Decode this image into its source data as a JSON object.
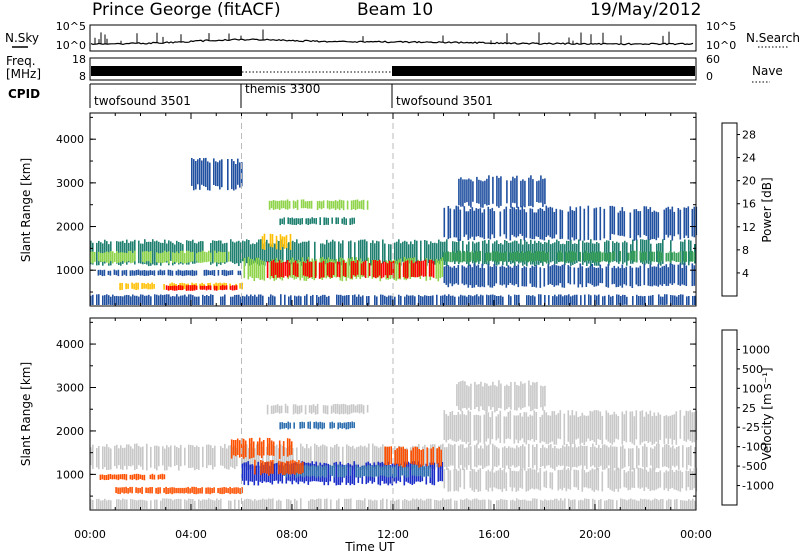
{
  "header": {
    "title": "Prince George (fitACF)",
    "beam": "Beam 10",
    "date": "19/May/2012"
  },
  "side_labels": {
    "nsky": "N.Sky",
    "freq_line1": "Freq.",
    "freq_line2": "[MHz]",
    "cpid": "CPID",
    "nsearch": "N.Search",
    "nave": "Nave"
  },
  "strip_axes": {
    "nsky_left_ticks": [
      "10^5",
      "10^0"
    ],
    "nsearch_right_ticks": [
      "10^5",
      "10^0"
    ],
    "freq_left_ticks": [
      "18",
      "8"
    ],
    "nave_right_ticks": [
      "60",
      "0"
    ]
  },
  "cpid_segments": [
    {
      "label": "twofsound 3501",
      "start_hour": 0,
      "end_hour": 6
    },
    {
      "label": "themis 3300",
      "start_hour": 6,
      "end_hour": 12
    },
    {
      "label": "twofsound 3501",
      "start_hour": 12,
      "end_hour": 24
    }
  ],
  "colors": {
    "power_scale": [
      "#ff0000",
      "#ff4400",
      "#ff8000",
      "#ffbf00",
      "#8fd44a",
      "#3aa05a",
      "#208070",
      "#2050a0",
      "#0000ff"
    ],
    "velocity_scale": [
      "#1a2cc8",
      "#2e6fb0",
      "#4f9a3a",
      "#5cc43c",
      "#c8c8c8",
      "#c8c8c8",
      "#ff8c00",
      "#ff5000",
      "#ff0000"
    ]
  },
  "chart_data": [
    {
      "type": "heatmap",
      "name": "power",
      "ylabel": "Slant Range [km]",
      "ylim": [
        180,
        4600
      ],
      "yticks": [
        "1000",
        "2000",
        "3000",
        "4000"
      ],
      "xlim": [
        0,
        24
      ],
      "xticks": [
        "00:00",
        "04:00",
        "08:00",
        "12:00",
        "16:00",
        "20:00",
        "00:00"
      ],
      "colorbar_label": "Power [dB]",
      "colorbar_ticks": [
        "4",
        "8",
        "12",
        "16",
        "20",
        "24",
        "28"
      ],
      "colorbar_range": [
        0,
        30
      ],
      "mode_change_hours": [
        6,
        12
      ],
      "regions": [
        {
          "t0": 0.0,
          "t1": 24.0,
          "r0": 1150,
          "r1": 1650,
          "value": 7
        },
        {
          "t0": 0.0,
          "t1": 5.5,
          "r0": 1180,
          "r1": 1420,
          "value": 14
        },
        {
          "t0": 14.0,
          "t1": 24.0,
          "r0": 1200,
          "r1": 1420,
          "value": 12
        },
        {
          "t0": 0.3,
          "t1": 6.0,
          "r0": 880,
          "r1": 1000,
          "value": 6
        },
        {
          "t0": 1.0,
          "t1": 6.0,
          "r0": 560,
          "r1": 700,
          "value": 18
        },
        {
          "t0": 3.0,
          "t1": 5.8,
          "r0": 540,
          "r1": 650,
          "value": 27
        },
        {
          "t0": 6.0,
          "t1": 14.0,
          "r0": 800,
          "r1": 1250,
          "value": 15
        },
        {
          "t0": 7.0,
          "t1": 13.6,
          "r0": 850,
          "r1": 1200,
          "value": 28
        },
        {
          "t0": 6.8,
          "t1": 8.0,
          "r0": 1500,
          "r1": 1800,
          "value": 20
        },
        {
          "t0": 7.0,
          "t1": 11.0,
          "r0": 2400,
          "r1": 2600,
          "value": 14
        },
        {
          "t0": 7.5,
          "t1": 10.5,
          "r0": 2050,
          "r1": 2200,
          "value": 10
        },
        {
          "t0": 14.0,
          "t1": 24.0,
          "r0": 650,
          "r1": 1100,
          "value": 5
        },
        {
          "t0": 14.0,
          "t1": 24.0,
          "r0": 1750,
          "r1": 2400,
          "value": 5
        },
        {
          "t0": 0.0,
          "t1": 24.0,
          "r0": 180,
          "r1": 420,
          "value": 4
        },
        {
          "t0": 14.5,
          "t1": 18.0,
          "r0": 2500,
          "r1": 3100,
          "value": 4
        },
        {
          "t0": 4.0,
          "t1": 6.0,
          "r0": 2900,
          "r1": 3500,
          "value": 4
        }
      ]
    },
    {
      "type": "heatmap",
      "name": "velocity",
      "ylabel": "Slant Range [km]",
      "ylim": [
        180,
        4600
      ],
      "yticks": [
        "1000",
        "2000",
        "3000",
        "4000"
      ],
      "xlim": [
        0,
        24
      ],
      "xticks": [
        "00:00",
        "04:00",
        "08:00",
        "12:00",
        "16:00",
        "20:00",
        "00:00"
      ],
      "xlabel": "Time UT",
      "colorbar_label": "Velocity [m s⁻¹]",
      "colorbar_ticks": [
        "1000",
        "500",
        "100",
        "25",
        "-25",
        "-100",
        "-500",
        "-1000"
      ],
      "colorbar_range": [
        -1000,
        1000
      ],
      "mode_change_hours": [
        6,
        12
      ],
      "regions": [
        {
          "t0": 0.0,
          "t1": 24.0,
          "r0": 1150,
          "r1": 1650,
          "value": 0
        },
        {
          "t0": 14.0,
          "t1": 24.0,
          "r0": 1750,
          "r1": 2400,
          "value": 0
        },
        {
          "t0": 14.0,
          "t1": 24.0,
          "r0": 650,
          "r1": 1100,
          "value": 0
        },
        {
          "t0": 1.0,
          "t1": 6.0,
          "r0": 560,
          "r1": 700,
          "value": -150
        },
        {
          "t0": 0.3,
          "t1": 3.0,
          "r0": 880,
          "r1": 1000,
          "value": -150
        },
        {
          "t0": 5.5,
          "t1": 8.0,
          "r0": 1400,
          "r1": 1800,
          "value": -150
        },
        {
          "t0": 6.0,
          "t1": 14.0,
          "r0": 800,
          "r1": 1250,
          "value": 300
        },
        {
          "t0": 7.5,
          "t1": 13.5,
          "r0": 950,
          "r1": 1200,
          "value": 80
        },
        {
          "t0": 6.5,
          "t1": 8.5,
          "r0": 1000,
          "r1": 1300,
          "value": -150
        },
        {
          "t0": 11.5,
          "t1": 14.0,
          "r0": 1200,
          "r1": 1600,
          "value": -150
        },
        {
          "t0": 7.0,
          "t1": 11.0,
          "r0": 2400,
          "r1": 2600,
          "value": 0
        },
        {
          "t0": 7.5,
          "t1": 10.5,
          "r0": 2050,
          "r1": 2200,
          "value": 80
        },
        {
          "t0": 0.0,
          "t1": 24.0,
          "r0": 180,
          "r1": 420,
          "value": 0
        },
        {
          "t0": 14.5,
          "t1": 18.0,
          "r0": 2500,
          "r1": 3100,
          "value": 0
        }
      ]
    }
  ]
}
